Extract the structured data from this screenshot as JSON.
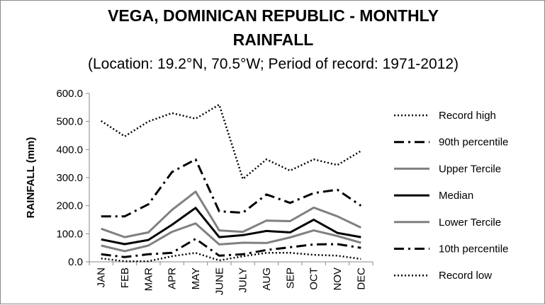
{
  "chart_data": {
    "type": "line",
    "title_line_1": "VEGA, DOMINICAN REPUBLIC - MONTHLY",
    "title_line_2": "RAINFALL",
    "subtitle": "(Location: 19.2°N, 70.5°W; Period of record: 1971-2012)",
    "ylabel": "RAINFALL (mm)",
    "xlabel": "",
    "ylim": [
      0,
      600
    ],
    "yticks": [
      "0.0",
      "100.0",
      "200.0",
      "300.0",
      "400.0",
      "500.0",
      "600.0"
    ],
    "categories": [
      "JAN",
      "FEB",
      "MAR",
      "APR",
      "MAY",
      "JUNE",
      "JULY",
      "AUG",
      "SEP",
      "OCT",
      "NOV",
      "DEC"
    ],
    "grid": false,
    "legend_position": "right",
    "series": [
      {
        "name": "Record high",
        "color": "#000000",
        "style": "dotted",
        "values": [
          502,
          447,
          500,
          530,
          510,
          560,
          295,
          365,
          325,
          365,
          345,
          395
        ]
      },
      {
        "name": "90th percentile",
        "color": "#000000",
        "style": "dashdot",
        "values": [
          162,
          162,
          205,
          320,
          365,
          180,
          175,
          240,
          210,
          245,
          257,
          200
        ]
      },
      {
        "name": "Upper Tercile",
        "color": "#808080",
        "style": "solid",
        "values": [
          118,
          88,
          105,
          185,
          250,
          112,
          107,
          147,
          145,
          193,
          162,
          122
        ]
      },
      {
        "name": "Median",
        "color": "#000000",
        "style": "solid",
        "values": [
          80,
          63,
          78,
          132,
          192,
          88,
          95,
          110,
          105,
          150,
          103,
          88
        ]
      },
      {
        "name": "Lower Tercile",
        "color": "#808080",
        "style": "solid",
        "values": [
          58,
          38,
          58,
          107,
          137,
          62,
          68,
          67,
          87,
          112,
          92,
          68
        ]
      },
      {
        "name": "10th percentile",
        "color": "#000000",
        "style": "dashdot",
        "values": [
          27,
          17,
          27,
          32,
          82,
          22,
          27,
          42,
          52,
          62,
          63,
          50
        ]
      },
      {
        "name": "Record low",
        "color": "#000000",
        "style": "dotted",
        "values": [
          12,
          2,
          2,
          20,
          32,
          5,
          20,
          32,
          32,
          25,
          22,
          10
        ]
      }
    ]
  }
}
